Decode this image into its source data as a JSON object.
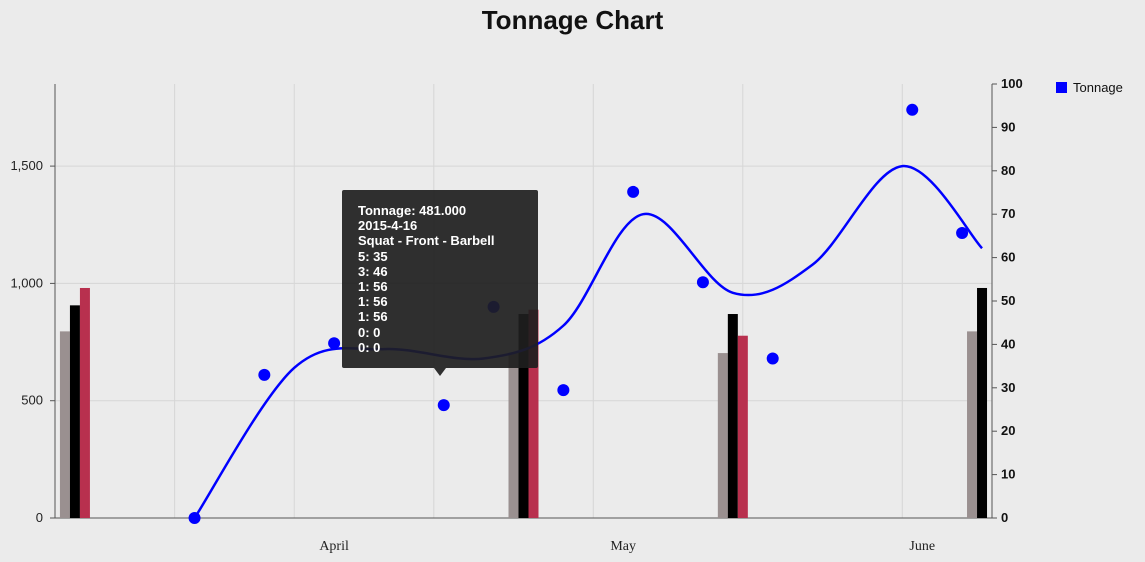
{
  "chart_data": {
    "type": "line",
    "title": "Tonnage Chart",
    "x_ticks": [
      "April",
      "May",
      "June"
    ],
    "y_left": {
      "ticks": [
        "0",
        "500",
        "1,000",
        "1,500"
      ],
      "tick_values": [
        0,
        500,
        1000,
        1500
      ],
      "range": [
        0,
        1850
      ]
    },
    "y_right": {
      "ticks": [
        "0",
        "10",
        "20",
        "30",
        "40",
        "50",
        "60",
        "70",
        "80",
        "90",
        "100"
      ],
      "tick_values": [
        0,
        10,
        20,
        30,
        40,
        50,
        60,
        70,
        80,
        90,
        100
      ],
      "range": [
        0,
        100
      ]
    },
    "legend": [
      "Tonnage"
    ],
    "legend_position": "top-right",
    "grid": true,
    "colors": {
      "tonnage": "#0000ff",
      "bar_a": "#9a9090",
      "bar_b": "#000000",
      "bar_c": "#b8304e"
    },
    "series": [
      {
        "name": "Tonnage",
        "axis": "left",
        "color": "#0000ff",
        "points": [
          {
            "date": "2015-03-22",
            "value": 0
          },
          {
            "date": "2015-03-29",
            "value": 610
          },
          {
            "date": "2015-04-05",
            "value": 745
          },
          {
            "date": "2015-04-16",
            "value": 481
          },
          {
            "date": "2015-04-21",
            "value": 900
          },
          {
            "date": "2015-04-28",
            "value": 545
          },
          {
            "date": "2015-05-05",
            "value": 1390
          },
          {
            "date": "2015-05-12",
            "value": 1005
          },
          {
            "date": "2015-05-19",
            "value": 680
          },
          {
            "date": "2015-06-02",
            "value": 1740
          },
          {
            "date": "2015-06-07",
            "value": 1215
          }
        ],
        "trend": [
          {
            "date": "2015-03-22",
            "value": 0
          },
          {
            "date": "2015-04-01",
            "value": 640
          },
          {
            "date": "2015-04-10",
            "value": 720
          },
          {
            "date": "2015-04-20",
            "value": 680
          },
          {
            "date": "2015-04-28",
            "value": 820
          },
          {
            "date": "2015-05-06",
            "value": 1295
          },
          {
            "date": "2015-05-15",
            "value": 960
          },
          {
            "date": "2015-05-23",
            "value": 1080
          },
          {
            "date": "2015-06-01",
            "value": 1500
          },
          {
            "date": "2015-06-09",
            "value": 1150
          }
        ]
      }
    ],
    "bar_groups": [
      {
        "date": "2015-03-10",
        "values": [
          43,
          49,
          53
        ]
      },
      {
        "date": "2015-04-24",
        "values": [
          38,
          47,
          48
        ]
      },
      {
        "date": "2015-05-15",
        "values": [
          38,
          47,
          42
        ]
      },
      {
        "date": "2015-06-09",
        "values": [
          43,
          53
        ]
      }
    ]
  },
  "tooltip": {
    "lines": [
      "Tonnage: 481.000",
      "2015-4-16",
      "Squat - Front - Barbell",
      "5: 35",
      "3: 46",
      "1: 56",
      "1: 56",
      "1: 56",
      "0: 0",
      "0: 0"
    ]
  }
}
